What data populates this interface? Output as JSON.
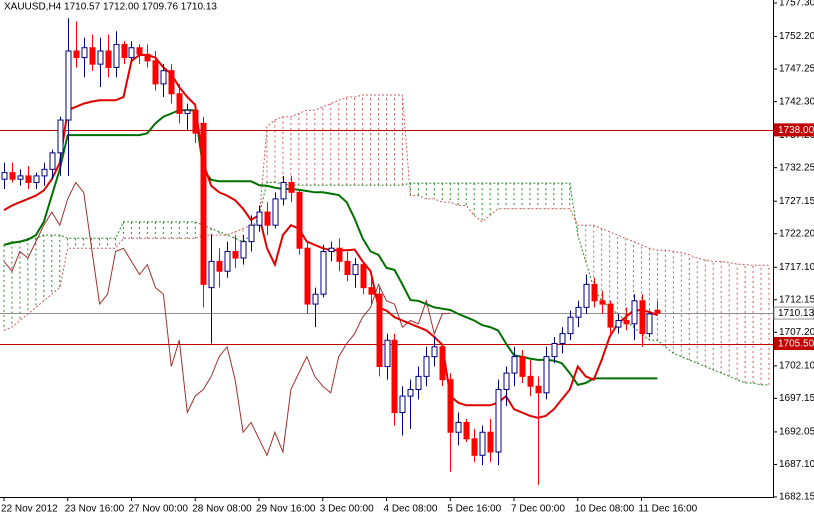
{
  "chart_data": {
    "type": "candlestick",
    "title": "XAUUSD,H4  1710.57 1712.00 1709.76 1710.13",
    "categories": [
      "22 Nov 2012",
      null,
      null,
      null,
      null,
      null,
      null,
      null,
      "23 Nov 16:00",
      null,
      null,
      null,
      null,
      null,
      null,
      null,
      "27 Nov 00:00",
      null,
      null,
      null,
      null,
      null,
      null,
      null,
      "28 Nov 08:00",
      null,
      null,
      null,
      null,
      null,
      null,
      null,
      "29 Nov 16:00",
      null,
      null,
      null,
      null,
      null,
      null,
      null,
      "3 Dec 00:00",
      null,
      null,
      null,
      null,
      null,
      null,
      null,
      "4 Dec 08:00",
      null,
      null,
      null,
      null,
      null,
      null,
      null,
      "5 Dec 16:00",
      null,
      null,
      null,
      null,
      null,
      null,
      null,
      "7 Dec 00:00",
      null,
      null,
      null,
      null,
      null,
      null,
      null,
      "10 Dec 08:00",
      null,
      null,
      null,
      null,
      null,
      null,
      null,
      "11 Dec 16:00",
      null,
      null,
      null,
      null,
      null,
      null,
      null,
      null,
      null,
      null,
      null,
      null,
      null,
      null,
      null,
      null
    ],
    "open": [
      1730.5,
      1731.5,
      1730.5,
      1731,
      1730,
      1731,
      1732,
      1734.5,
      1739.5,
      1750,
      1749,
      1750.5,
      1748,
      1750,
      1747.5,
      1751,
      1749,
      1750.5,
      1749.5,
      1748.5,
      1745,
      1747,
      1743.5,
      1740.5,
      1741,
      1739,
      1714,
      1718,
      1716.5,
      1719.5,
      1718.5,
      1721,
      1723.5,
      1725.5,
      1723.5,
      1727.5,
      1730,
      1728.5,
      1720,
      1711.5,
      1713,
      1719.5,
      1720,
      1718,
      1716,
      1717.5,
      1714,
      1713,
      1702,
      1706,
      1695,
      1697.5,
      1698.5,
      1700.5,
      1703.5,
      1705,
      1700,
      1692,
      1693.5,
      1691,
      1688.5,
      1692,
      1689,
      1698.5,
      1701,
      1703.5,
      1700.5,
      1699,
      1698,
      1703.5,
      1705.5,
      1707,
      1709.5,
      1711,
      1714.5,
      1712,
      1711.5,
      1708,
      1709,
      1708.5,
      1712,
      1707,
      1710.57,
      null,
      null,
      null,
      null,
      null,
      null,
      null,
      null,
      null,
      null,
      null,
      null,
      null,
      null
    ],
    "high": [
      1733,
      1733,
      1732,
      1732.5,
      1731.5,
      1733,
      1735,
      1740,
      1755,
      1754.5,
      1752,
      1752.5,
      1752,
      1752.5,
      1753,
      1751.5,
      1751.5,
      1751,
      1751,
      1750,
      1748,
      1748,
      1745,
      1742,
      1742,
      1740,
      1722,
      1720,
      1721,
      1722,
      1722,
      1725,
      1726.5,
      1727,
      1728.5,
      1731,
      1731,
      1729,
      1721,
      1714,
      1720.5,
      1721,
      1721.5,
      1719.5,
      1718.5,
      1718,
      1716,
      1714,
      1707,
      1707,
      1699,
      1700,
      1702,
      1705,
      1706.5,
      1705.5,
      1701,
      1695,
      1694,
      1692.5,
      1693,
      1694,
      1700,
      1702,
      1705,
      1704.5,
      1703,
      1700.5,
      1705,
      1706.5,
      1708,
      1710.5,
      1712,
      1716,
      1715.5,
      1713.5,
      1712,
      1710,
      1711,
      1713,
      1713,
      1710.5,
      1712,
      null,
      null,
      null,
      null,
      null,
      null,
      null,
      null,
      null,
      null,
      null,
      null,
      null,
      null
    ],
    "low": [
      1729,
      1730,
      1729.5,
      1729,
      1729,
      1729.5,
      1730.5,
      1731,
      1731,
      1747.5,
      1746,
      1747,
      1744.5,
      1746,
      1746,
      1748,
      1748.5,
      1748,
      1747.5,
      1744,
      1743,
      1742,
      1739,
      1738,
      1736,
      1711,
      1705.5,
      1714,
      1715.5,
      1717,
      1717.5,
      1719.5,
      1722.5,
      1722,
      1723,
      1726.5,
      1727,
      1719,
      1710,
      1708,
      1712.5,
      1718,
      1716.5,
      1715,
      1714,
      1713,
      1711.5,
      1700.5,
      1700,
      1693,
      1691.5,
      1692.5,
      1697,
      1699,
      1702,
      1699,
      1686,
      1690,
      1690.5,
      1687.5,
      1687,
      1687.5,
      1687,
      1696,
      1699,
      1699.5,
      1697.5,
      1684,
      1697,
      1702.5,
      1704,
      1706,
      1708,
      1710,
      1711,
      1710,
      1707,
      1707,
      1707.5,
      1706,
      1705,
      1706.5,
      1709.76,
      null,
      null,
      null,
      null,
      null,
      null,
      null,
      null,
      null,
      null,
      null,
      null,
      null,
      null
    ],
    "close": [
      1731.5,
      1730.5,
      1731,
      1730,
      1731,
      1732,
      1734.5,
      1739.5,
      1750,
      1749,
      1750.5,
      1748,
      1750,
      1747.5,
      1751,
      1749,
      1750.5,
      1749.5,
      1748.5,
      1745,
      1747,
      1743.5,
      1740.5,
      1741,
      1737.5,
      1714.5,
      1718,
      1716.5,
      1719.5,
      1718.5,
      1721,
      1723.5,
      1725.5,
      1723.5,
      1727.5,
      1730,
      1728.5,
      1720,
      1711.5,
      1713,
      1719.5,
      1720,
      1718,
      1716,
      1717.5,
      1714,
      1713,
      1702,
      1706,
      1695,
      1697.5,
      1698.5,
      1700.5,
      1703.5,
      1705,
      1700,
      1692,
      1693.5,
      1691,
      1688.5,
      1692,
      1689,
      1698.5,
      1701,
      1703.5,
      1700.5,
      1699,
      1698,
      1703.5,
      1705.5,
      1707,
      1709.5,
      1711,
      1714.5,
      1712,
      1711.5,
      1708,
      1709,
      1708.5,
      1712,
      1707,
      1710,
      1710.13,
      null,
      null,
      null,
      null,
      null,
      null,
      null,
      null,
      null,
      null,
      null,
      null,
      null,
      null
    ],
    "up_color": "#000080",
    "down_color": "#ff0000",
    "lines": [
      {
        "color": "#a03030",
        "width": 1,
        "values": [
          1718,
          1716.5,
          1719.5,
          1718.5,
          1721,
          1723.5,
          1725.5,
          1723.5,
          1727.5,
          1730,
          1728.5,
          1720,
          1711.5,
          1713,
          1719.5,
          1720,
          1718,
          1716,
          1717.5,
          1714,
          1713,
          1702,
          1706,
          1695,
          1697.5,
          1698.5,
          1700.5,
          1703.5,
          1705,
          1700,
          1692,
          1693.5,
          1691,
          1688.5,
          1692,
          1689,
          1698.5,
          1701,
          1703.5,
          1700.5,
          1699,
          1698,
          1703.5,
          1705.5,
          1707,
          1709.5,
          1711,
          1714.5,
          1712,
          1711.5,
          1708,
          1709,
          1708.5,
          1712,
          1707,
          1710,
          1710.13,
          null,
          null,
          null,
          null,
          null,
          null,
          null,
          null,
          null,
          null,
          null,
          null,
          null,
          null,
          null,
          null,
          null,
          null,
          null,
          null,
          null,
          null,
          null,
          null,
          null,
          null,
          null,
          null,
          null,
          null,
          null,
          null,
          null,
          null,
          null,
          null,
          null,
          null,
          null
        ]
      },
      {
        "color": "#007000",
        "width": 2,
        "values": [
          1720.5,
          1720.8,
          1721,
          1721.3,
          1722,
          1724,
          1728,
          1732,
          1737.2,
          1737.2,
          1737.2,
          1737.2,
          1737.2,
          1737.2,
          1737.2,
          1737.2,
          1737.2,
          1737.2,
          1737.5,
          1739,
          1740,
          1740.5,
          1741,
          1741,
          1741,
          1732,
          1730.4,
          1730.2,
          1730.2,
          1730.2,
          1730.2,
          1730.2,
          1729.6,
          1729.5,
          1729.2,
          1729,
          1729,
          1728.9,
          1728.7,
          1728.5,
          1728.5,
          1728.3,
          1728.1,
          1727,
          1724.5,
          1721.5,
          1719.5,
          1719,
          1717,
          1716.7,
          1714.5,
          1712.1,
          1712,
          1711.5,
          1711,
          1710.8,
          1710.6,
          1710,
          1709.5,
          1709,
          1708.3,
          1708,
          1707.5,
          1705.5,
          1703.7,
          1703.5,
          1703.2,
          1703,
          1703,
          1702.9,
          1702.5,
          1701,
          1699.2,
          1699.5,
          1700.2,
          1700.2,
          1700.2,
          1700.2,
          1700.2,
          1700.2,
          1700.2,
          1700.2,
          1700.2,
          null,
          null,
          null,
          null,
          null,
          null,
          null,
          null,
          null,
          null,
          null,
          null,
          null,
          null
        ]
      },
      {
        "color": "#e00000",
        "width": 2,
        "values": [
          1725.8,
          1726.5,
          1727,
          1727.5,
          1728,
          1728.8,
          1730.5,
          1733,
          1741,
          1741.5,
          1742,
          1742.3,
          1742.5,
          1742.5,
          1742.5,
          1743,
          1748.5,
          1749.4,
          1749.4,
          1749,
          1747.5,
          1746.5,
          1744.5,
          1743,
          1741.8,
          1733,
          1729.5,
          1728.5,
          1728,
          1727.3,
          1726,
          1724.3,
          1725,
          1720,
          1717.5,
          1722,
          1723.5,
          1723,
          1721,
          1720.5,
          1720,
          1719.7,
          1719.7,
          1719.7,
          1719.8,
          1718,
          1716.5,
          1711,
          1710.5,
          1709.5,
          1709,
          1708.5,
          1708,
          1707.5,
          1706.5,
          1705.3,
          1697.5,
          1696.5,
          1696.1,
          1696.1,
          1696.1,
          1696.1,
          1696.5,
          1697.5,
          1695.5,
          1695,
          1694.5,
          1694.2,
          1694.5,
          1695.5,
          1697,
          1698.5,
          1702,
          1700.5,
          1700,
          1703,
          1706.5,
          1708.5,
          1709.5,
          1710.5,
          1710.6,
          1710.3,
          1709.8,
          null,
          null,
          null,
          null,
          null,
          null,
          null,
          null,
          null,
          null,
          null,
          null,
          null,
          null
        ]
      }
    ],
    "cloud": {
      "span_a": {
        "color": "#228b22",
        "values": [
          1720.5,
          1721,
          1721,
          1721.5,
          1721.5,
          1722,
          1722,
          1722,
          1721.5,
          1721.5,
          1721.5,
          1721.5,
          1721.5,
          1721.5,
          1721.5,
          1724,
          1724,
          1724,
          1724,
          1724,
          1724,
          1724,
          1724,
          1724,
          1724,
          1723.5,
          1723,
          1722.5,
          1722,
          1721.5,
          1721,
          1722,
          1725,
          1730,
          1730,
          1729.8,
          1729.6,
          1729.6,
          1729.6,
          1729.6,
          1729.6,
          1729.6,
          1729.6,
          1729.6,
          1729.6,
          1729.6,
          1729.6,
          1729.6,
          1729.6,
          1729.6,
          1729.6,
          1729.9,
          1729.9,
          1729.9,
          1729.9,
          1729.9,
          1729.9,
          1729.9,
          1729.9,
          1729.9,
          1729.9,
          1729.9,
          1729.9,
          1729.9,
          1729.9,
          1729.9,
          1729.9,
          1729.9,
          1729.9,
          1729.9,
          1729.9,
          1729.9,
          1722,
          1718,
          1714,
          1712,
          1711,
          1710,
          1709,
          1708,
          1707,
          1706,
          1706,
          1705,
          1704,
          1703.5,
          1703,
          1702.5,
          1702,
          1701.5,
          1701,
          1700.5,
          1700,
          1699.5,
          1699.5,
          1699.2,
          1699.2
        ]
      },
      "span_b": {
        "color": "#cd5c5c",
        "values": [
          1707.5,
          1708,
          1709,
          1710,
          1711,
          1712,
          1713,
          1714,
          1720,
          1720,
          1720,
          1720,
          1720,
          1720,
          1720,
          1721.5,
          1721.5,
          1721.5,
          1721.5,
          1721.5,
          1721.5,
          1721.5,
          1721.5,
          1721.5,
          1721.5,
          1722,
          1722,
          1722,
          1722,
          1722.5,
          1723,
          1723.5,
          1724,
          1738.5,
          1739.5,
          1740,
          1740,
          1740.5,
          1741,
          1741,
          1741.5,
          1742,
          1742.5,
          1743,
          1743,
          1743.3,
          1743.3,
          1743.3,
          1743.3,
          1743.3,
          1743.3,
          1728,
          1728,
          1727.5,
          1727.5,
          1727,
          1727,
          1726.5,
          1726.5,
          1725,
          1724,
          1725,
          1726,
          1726,
          1726,
          1726,
          1726,
          1726,
          1726,
          1726,
          1726,
          1726,
          1723.5,
          1723.5,
          1723.5,
          1723,
          1722.5,
          1722,
          1721.5,
          1721,
          1720.5,
          1720,
          1719.7,
          1719.7,
          1719.5,
          1719.3,
          1719,
          1718.5,
          1718.2,
          1718,
          1718,
          1717.8,
          1717.6,
          1717.5,
          1717.4,
          1717.4,
          1717.4
        ]
      }
    },
    "levels": [
      {
        "value": 1738,
        "label": "1738.00",
        "color": "#c00000",
        "box": "#c00000",
        "text_color": "#ffffff"
      },
      {
        "value": 1710.13,
        "color": "#909090",
        "box": "#ffffff",
        "text_color": "#000000"
      },
      {
        "value": 1705.5,
        "label": "1705.50",
        "color": "#c00000",
        "box": "#c00000",
        "text_color": "#ffffff"
      }
    ],
    "ylim": [
      1682.15,
      1757.76
    ],
    "yticks": [
      1682.15,
      {
        "value": 1687.1,
        "label": "1687.10"
      },
      1692.05,
      1697.15,
      {
        "value": 1702.1,
        "label": "1702.10"
      },
      {
        "value": 1707.2,
        "label": "1707.20"
      },
      1712.15,
      {
        "value": 1717.1,
        "label": "1717.10"
      },
      {
        "value": 1722.2,
        "label": "1722.20"
      },
      1727.15,
      1732.25,
      {
        "value": 1737.2,
        "label": "1737.20"
      },
      {
        "value": 1742.3,
        "label": "1742.30"
      },
      1747.25,
      {
        "value": 1752.2,
        "label": "1752.20"
      },
      {
        "value": 1757.3,
        "label": "1757.30"
      }
    ]
  }
}
